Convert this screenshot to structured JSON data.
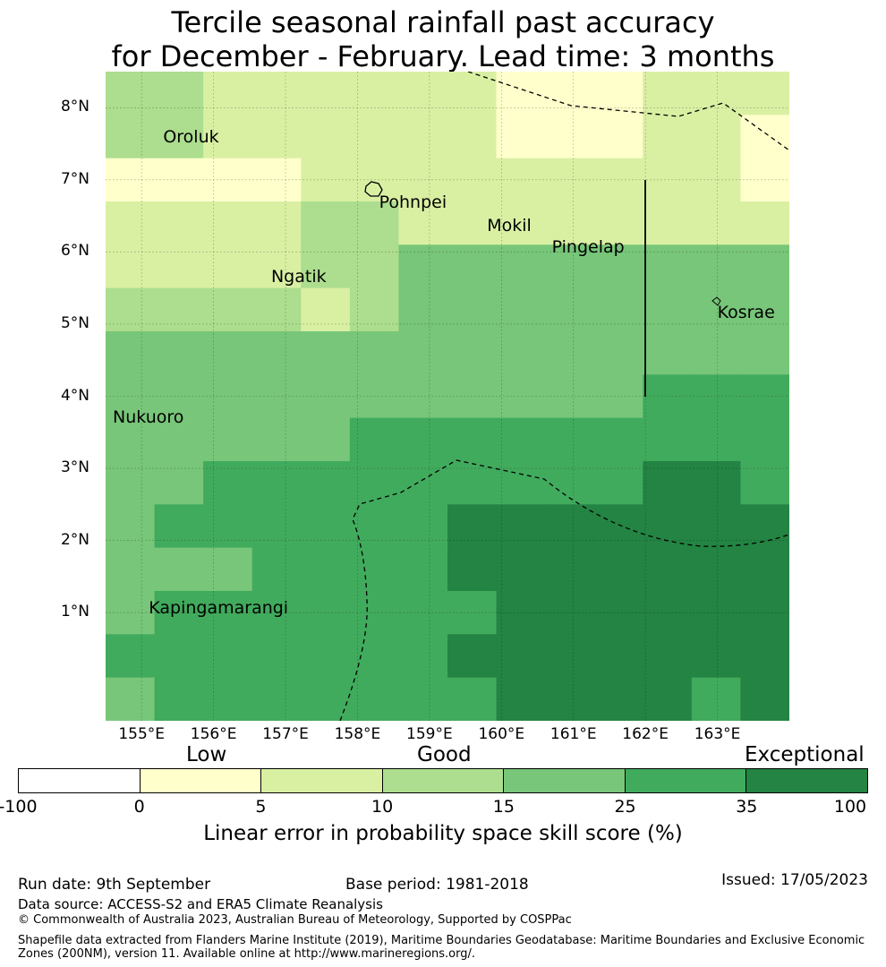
{
  "title_line1": "Tercile seasonal rainfall past accuracy",
  "title_line2": "for December - February. Lead time: 3 months",
  "map": {
    "extent": {
      "lon_min": 154.5,
      "lon_max": 164.0,
      "lat_min": -0.5,
      "lat_max": 8.5
    },
    "lat_labels": [
      {
        "lat": 8,
        "label": "8°N"
      },
      {
        "lat": 7,
        "label": "7°N"
      },
      {
        "lat": 6,
        "label": "6°N"
      },
      {
        "lat": 5,
        "label": "5°N"
      },
      {
        "lat": 4,
        "label": "4°N"
      },
      {
        "lat": 3,
        "label": "3°N"
      },
      {
        "lat": 2,
        "label": "2°N"
      },
      {
        "lat": 1,
        "label": "1°N"
      }
    ],
    "lon_labels": [
      {
        "lon": 155,
        "label": "155°E"
      },
      {
        "lon": 156,
        "label": "156°E"
      },
      {
        "lon": 157,
        "label": "157°E"
      },
      {
        "lon": 158,
        "label": "158°E"
      },
      {
        "lon": 159,
        "label": "159°E"
      },
      {
        "lon": 160,
        "label": "160°E"
      },
      {
        "lon": 161,
        "label": "161°E"
      },
      {
        "lon": 162,
        "label": "162°E"
      },
      {
        "lon": 163,
        "label": "163°E"
      }
    ],
    "places": [
      {
        "name": "Oroluk",
        "lon": 155.3,
        "lat": 7.58
      },
      {
        "name": "Pohnpei",
        "lon": 158.3,
        "lat": 6.68
      },
      {
        "name": "Mokil",
        "lon": 159.8,
        "lat": 6.35
      },
      {
        "name": "Pingelap",
        "lon": 160.7,
        "lat": 6.05
      },
      {
        "name": "Ngatik",
        "lon": 156.8,
        "lat": 5.65
      },
      {
        "name": "Kosrae",
        "lon": 163.0,
        "lat": 5.15
      },
      {
        "name": "Nukuoro",
        "lon": 154.6,
        "lat": 3.7
      },
      {
        "name": "Kapingamarangi",
        "lon": 155.1,
        "lat": 1.05
      }
    ],
    "grid_rows_north_to_south": [
      [
        3,
        3,
        2,
        2,
        2,
        2,
        2,
        2,
        1,
        1,
        1,
        2,
        2,
        2
      ],
      [
        3,
        3,
        2,
        2,
        2,
        2,
        2,
        2,
        1,
        1,
        1,
        2,
        2,
        1
      ],
      [
        1,
        1,
        1,
        1,
        2,
        2,
        2,
        2,
        2,
        2,
        2,
        2,
        2,
        1
      ],
      [
        2,
        2,
        2,
        2,
        3,
        3,
        2,
        2,
        2,
        2,
        2,
        2,
        2,
        2
      ],
      [
        2,
        2,
        2,
        2,
        3,
        3,
        4,
        4,
        4,
        4,
        4,
        4,
        4,
        4
      ],
      [
        3,
        3,
        3,
        3,
        2,
        3,
        4,
        4,
        4,
        4,
        4,
        4,
        4,
        4
      ],
      [
        4,
        4,
        4,
        4,
        4,
        4,
        4,
        4,
        4,
        4,
        4,
        4,
        4,
        4
      ],
      [
        4,
        4,
        4,
        4,
        4,
        4,
        4,
        4,
        4,
        4,
        4,
        5,
        5,
        5
      ],
      [
        4,
        4,
        4,
        4,
        4,
        5,
        5,
        5,
        5,
        5,
        5,
        5,
        5,
        5
      ],
      [
        4,
        4,
        5,
        5,
        5,
        5,
        5,
        5,
        5,
        5,
        5,
        6,
        6,
        5
      ],
      [
        4,
        5,
        5,
        5,
        5,
        5,
        5,
        6,
        6,
        6,
        6,
        6,
        6,
        6
      ],
      [
        4,
        4,
        4,
        5,
        5,
        5,
        5,
        6,
        6,
        6,
        6,
        6,
        6,
        6
      ],
      [
        4,
        5,
        5,
        5,
        5,
        5,
        5,
        5,
        6,
        6,
        6,
        6,
        6,
        6
      ],
      [
        5,
        5,
        5,
        5,
        5,
        5,
        5,
        6,
        6,
        6,
        6,
        6,
        6,
        6
      ],
      [
        4,
        5,
        5,
        5,
        5,
        5,
        5,
        5,
        6,
        6,
        6,
        6,
        5,
        6
      ]
    ],
    "colors": [
      "#ffffff",
      "#ffffcc",
      "#d9f0a3",
      "#addd8e",
      "#78c679",
      "#41ab5d",
      "#238443"
    ]
  },
  "colorbar": {
    "segment_colors": [
      "#ffffff",
      "#ffffcc",
      "#d9f0a3",
      "#addd8e",
      "#78c679",
      "#41ab5d",
      "#238443"
    ],
    "ticks": [
      "-100",
      "0",
      "5",
      "10",
      "15",
      "25",
      "35",
      "100"
    ],
    "categories": {
      "low": "Low",
      "good": "Good",
      "exceptional": "Exceptional"
    },
    "label": "Linear error in probability space skill score (%)"
  },
  "footer": {
    "run_date": "Run date: 9th September",
    "base_period": "Base period: 1981-2018",
    "issued": "Issued: 17/05/2023",
    "data_source": "Data source: ACCESS-S2 and ERA5 Climate Reanalysis",
    "copyright": "© Commonwealth of Australia 2023, Australian Bureau of Meteorology, Supported by COSPPac",
    "shapefile": "Shapefile data extracted from Flanders Marine Institute (2019), Maritime Boundaries Geodatabase: Maritime Boundaries and Exclusive Economic Zones (200NM), version 11. Available online at http://www.marineregions.org/."
  }
}
